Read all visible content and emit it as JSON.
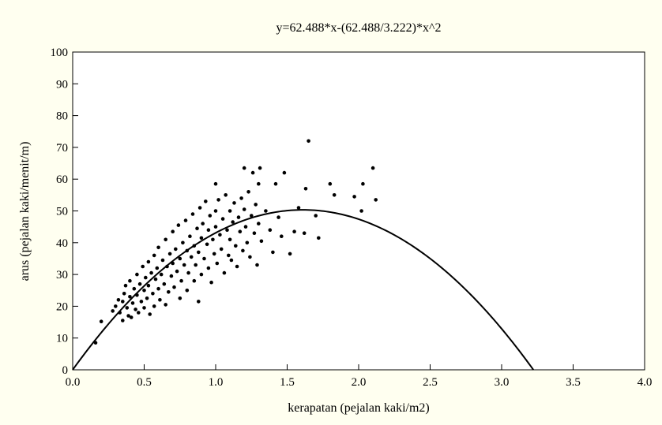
{
  "chart_data": {
    "type": "scatter",
    "title": "y=62.488*x-(62.488/3.222)*x^2",
    "xlabel": "kerapatan (pejalan kaki/m2)",
    "ylabel": "arus (pejalan kaki/menit/m)",
    "xlim": [
      0,
      4
    ],
    "ylim": [
      0,
      100
    ],
    "x_ticks": [
      0.0,
      0.5,
      1.0,
      1.5,
      2.0,
      2.5,
      3.0,
      3.5,
      4.0
    ],
    "x_tick_labels": [
      "0.0",
      "0.5",
      "1.0",
      "1.5",
      "2.0",
      "2.5",
      "3.0",
      "3.5",
      "4.0"
    ],
    "y_ticks": [
      0,
      10,
      20,
      30,
      40,
      50,
      60,
      70,
      80,
      90,
      100
    ],
    "y_tick_labels": [
      "0",
      "10",
      "20",
      "30",
      "40",
      "50",
      "60",
      "70",
      "80",
      "90",
      "100"
    ],
    "grid": false,
    "fit_curve": {
      "a": 62.488,
      "jam_density": 3.222
    },
    "series": [
      {
        "type": "scatter",
        "points": [
          [
            0.16,
            8.5
          ],
          [
            0.2,
            15.2
          ],
          [
            0.28,
            18.5
          ],
          [
            0.3,
            20.0
          ],
          [
            0.32,
            22.0
          ],
          [
            0.33,
            18.0
          ],
          [
            0.35,
            21.5
          ],
          [
            0.35,
            15.5
          ],
          [
            0.36,
            24.0
          ],
          [
            0.37,
            26.5
          ],
          [
            0.38,
            19.5
          ],
          [
            0.39,
            17.0
          ],
          [
            0.4,
            23.0
          ],
          [
            0.4,
            28.0
          ],
          [
            0.41,
            16.5
          ],
          [
            0.42,
            21.0
          ],
          [
            0.43,
            25.5
          ],
          [
            0.44,
            19.0
          ],
          [
            0.45,
            30.0
          ],
          [
            0.45,
            23.5
          ],
          [
            0.46,
            18.0
          ],
          [
            0.47,
            27.0
          ],
          [
            0.48,
            21.5
          ],
          [
            0.49,
            32.5
          ],
          [
            0.5,
            25.0
          ],
          [
            0.5,
            19.5
          ],
          [
            0.51,
            29.0
          ],
          [
            0.52,
            22.5
          ],
          [
            0.53,
            34.0
          ],
          [
            0.53,
            26.5
          ],
          [
            0.54,
            17.5
          ],
          [
            0.55,
            30.5
          ],
          [
            0.56,
            24.0
          ],
          [
            0.57,
            36.0
          ],
          [
            0.57,
            20.0
          ],
          [
            0.58,
            28.5
          ],
          [
            0.59,
            32.0
          ],
          [
            0.6,
            25.5
          ],
          [
            0.6,
            38.5
          ],
          [
            0.61,
            22.0
          ],
          [
            0.62,
            30.0
          ],
          [
            0.63,
            34.5
          ],
          [
            0.64,
            27.0
          ],
          [
            0.65,
            41.0
          ],
          [
            0.65,
            20.5
          ],
          [
            0.66,
            32.5
          ],
          [
            0.67,
            24.5
          ],
          [
            0.68,
            36.5
          ],
          [
            0.69,
            29.5
          ],
          [
            0.7,
            43.5
          ],
          [
            0.7,
            33.5
          ],
          [
            0.71,
            26.0
          ],
          [
            0.72,
            38.0
          ],
          [
            0.73,
            31.0
          ],
          [
            0.74,
            45.5
          ],
          [
            0.75,
            35.0
          ],
          [
            0.75,
            22.5
          ],
          [
            0.76,
            28.0
          ],
          [
            0.77,
            40.0
          ],
          [
            0.78,
            33.0
          ],
          [
            0.79,
            47.0
          ],
          [
            0.8,
            37.5
          ],
          [
            0.8,
            25.0
          ],
          [
            0.81,
            30.5
          ],
          [
            0.82,
            42.0
          ],
          [
            0.83,
            35.5
          ],
          [
            0.84,
            49.0
          ],
          [
            0.85,
            39.0
          ],
          [
            0.85,
            28.0
          ],
          [
            0.86,
            33.0
          ],
          [
            0.87,
            44.5
          ],
          [
            0.88,
            21.5
          ],
          [
            0.88,
            37.0
          ],
          [
            0.89,
            51.0
          ],
          [
            0.9,
            41.5
          ],
          [
            0.9,
            30.0
          ],
          [
            0.91,
            46.0
          ],
          [
            0.92,
            35.0
          ],
          [
            0.93,
            53.0
          ],
          [
            0.94,
            39.5
          ],
          [
            0.95,
            32.0
          ],
          [
            0.95,
            44.0
          ],
          [
            0.96,
            48.5
          ],
          [
            0.97,
            27.5
          ],
          [
            0.98,
            41.0
          ],
          [
            0.99,
            36.5
          ],
          [
            1.0,
            58.5
          ],
          [
            1.0,
            50.0
          ],
          [
            1.0,
            45.0
          ],
          [
            1.01,
            33.5
          ],
          [
            1.02,
            53.5
          ],
          [
            1.03,
            42.5
          ],
          [
            1.04,
            38.0
          ],
          [
            1.05,
            47.5
          ],
          [
            1.06,
            30.5
          ],
          [
            1.07,
            55.0
          ],
          [
            1.08,
            44.0
          ],
          [
            1.09,
            36.0
          ],
          [
            1.1,
            50.0
          ],
          [
            1.1,
            41.0
          ],
          [
            1.11,
            34.5
          ],
          [
            1.12,
            46.5
          ],
          [
            1.13,
            52.5
          ],
          [
            1.14,
            39.0
          ],
          [
            1.15,
            32.5
          ],
          [
            1.16,
            48.0
          ],
          [
            1.17,
            43.5
          ],
          [
            1.18,
            54.0
          ],
          [
            1.19,
            37.5
          ],
          [
            1.2,
            63.5
          ],
          [
            1.2,
            50.5
          ],
          [
            1.21,
            45.0
          ],
          [
            1.22,
            40.0
          ],
          [
            1.23,
            56.0
          ],
          [
            1.24,
            35.5
          ],
          [
            1.25,
            48.5
          ],
          [
            1.26,
            62.0
          ],
          [
            1.27,
            43.0
          ],
          [
            1.28,
            52.0
          ],
          [
            1.29,
            33.0
          ],
          [
            1.3,
            58.5
          ],
          [
            1.3,
            46.0
          ],
          [
            1.31,
            63.5
          ],
          [
            1.32,
            40.5
          ],
          [
            1.35,
            50.0
          ],
          [
            1.38,
            44.0
          ],
          [
            1.4,
            37.0
          ],
          [
            1.42,
            58.5
          ],
          [
            1.44,
            48.0
          ],
          [
            1.46,
            42.0
          ],
          [
            1.48,
            62.0
          ],
          [
            1.52,
            36.5
          ],
          [
            1.55,
            43.5
          ],
          [
            1.58,
            51.0
          ],
          [
            1.62,
            43.0
          ],
          [
            1.63,
            57.0
          ],
          [
            1.65,
            72.0
          ],
          [
            1.7,
            48.5
          ],
          [
            1.72,
            41.5
          ],
          [
            1.8,
            58.5
          ],
          [
            1.83,
            55.0
          ],
          [
            1.97,
            54.5
          ],
          [
            2.02,
            50.0
          ],
          [
            2.03,
            58.5
          ],
          [
            2.1,
            63.5
          ],
          [
            2.12,
            53.5
          ]
        ]
      }
    ]
  }
}
